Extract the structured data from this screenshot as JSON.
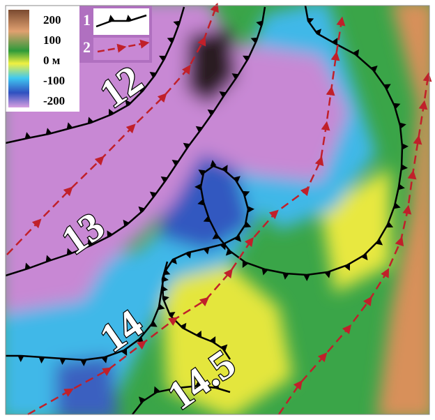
{
  "legend": {
    "scale": [
      "200",
      "100",
      "0 м",
      "-100",
      "-200"
    ],
    "key": [
      "1",
      "2"
    ]
  },
  "labels": [
    "12",
    "13",
    "14",
    "14.5"
  ]
}
